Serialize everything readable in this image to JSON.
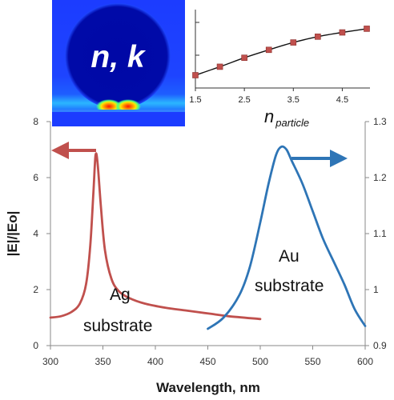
{
  "chart_data": [
    {
      "type": "line",
      "xlabel": "Wavelength, nm",
      "ylabel": "|E|/|Eo|",
      "xlim": [
        300,
        600
      ],
      "ylim_left": [
        0,
        8
      ],
      "ylim_right": [
        0.9,
        1.3
      ],
      "x_ticks": [
        "300",
        "350",
        "400",
        "450",
        "500",
        "550",
        "600"
      ],
      "y_left_ticks": [
        "0",
        "2",
        "4",
        "6",
        "8"
      ],
      "y_right_ticks": [
        "0.9",
        "1",
        "1.1",
        "1.2",
        "1.3"
      ],
      "grid": false,
      "series": [
        {
          "annotation_line1": "Ag",
          "annotation_line2": "substrate",
          "axis": "left",
          "color": "#c0504d",
          "x": [
            300,
            310,
            320,
            328,
            334,
            338,
            341,
            343,
            345,
            348,
            352,
            358,
            365,
            375,
            390,
            410,
            430,
            450,
            470,
            500
          ],
          "y": [
            1.0,
            1.05,
            1.2,
            1.5,
            2.2,
            3.6,
            5.5,
            6.8,
            6.5,
            5.0,
            3.4,
            2.4,
            1.95,
            1.7,
            1.5,
            1.35,
            1.25,
            1.15,
            1.05,
            0.95
          ]
        },
        {
          "annotation_line1": "Au",
          "annotation_line2": "substrate",
          "axis": "right",
          "color": "#2e75b6",
          "x": [
            450,
            465,
            480,
            490,
            500,
            508,
            515,
            520,
            525,
            530,
            540,
            550,
            560,
            570,
            580,
            590,
            600
          ],
          "y": [
            0.93,
            0.95,
            0.99,
            1.04,
            1.12,
            1.19,
            1.24,
            1.255,
            1.25,
            1.23,
            1.19,
            1.14,
            1.09,
            1.05,
            1.01,
            0.965,
            0.935
          ]
        }
      ]
    },
    {
      "type": "line",
      "xlabel": "n",
      "xlabel_subscript": "particle",
      "ylabel": "",
      "xlim": [
        1.5,
        5.0
      ],
      "x_ticks": [
        "1.5",
        "2.5",
        "3.5",
        "4.5"
      ],
      "ylim": [
        0,
        1
      ],
      "grid": false,
      "series": [
        {
          "color": "#c0504d",
          "x": [
            1.5,
            2.0,
            2.5,
            3.0,
            3.5,
            4.0,
            4.5,
            5.0
          ],
          "y": [
            0.0,
            0.16,
            0.33,
            0.48,
            0.62,
            0.73,
            0.81,
            0.88
          ]
        }
      ]
    }
  ],
  "inset_image": {
    "label": "n, k",
    "colors": {
      "background": "#1a3cff",
      "particle": "#0008a8",
      "hotspot": "#ff2a00"
    }
  }
}
